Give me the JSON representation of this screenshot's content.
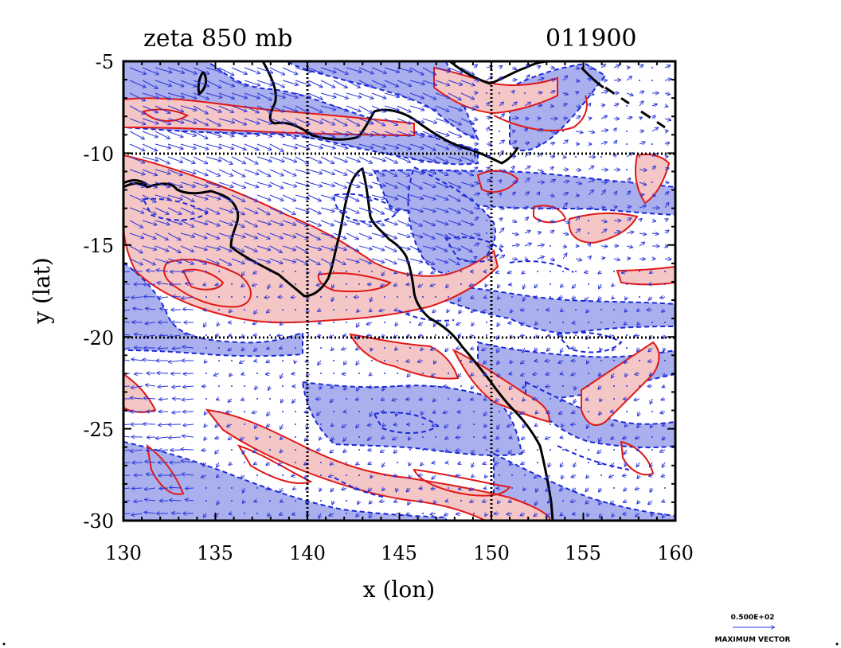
{
  "chart_data": {
    "type": "contour",
    "title": "zeta 850 mb",
    "timestamp": "011900",
    "xlabel": "x (lon)",
    "ylabel": "y (lat)",
    "xlim": [
      130,
      160
    ],
    "ylim": [
      -30,
      -5
    ],
    "x_ticks": [
      "130",
      "135",
      "140",
      "145",
      "150",
      "155",
      "160"
    ],
    "y_ticks": [
      "-5",
      "-10",
      "-15",
      "-20",
      "-25",
      "-30"
    ],
    "grid_lon": [
      140,
      150
    ],
    "grid_lat": [
      -10,
      -20
    ],
    "fill_colors": {
      "positive": "#f5c6c6",
      "negative": "#aab0ee"
    },
    "line_colors": {
      "positive": "#e01818",
      "negative": "#1a28d8",
      "coast": "#000000",
      "vectors": "#2a35d8"
    },
    "vector_legend": {
      "value": "0.500E+02",
      "label": "MAXIMUM VECTOR"
    }
  }
}
